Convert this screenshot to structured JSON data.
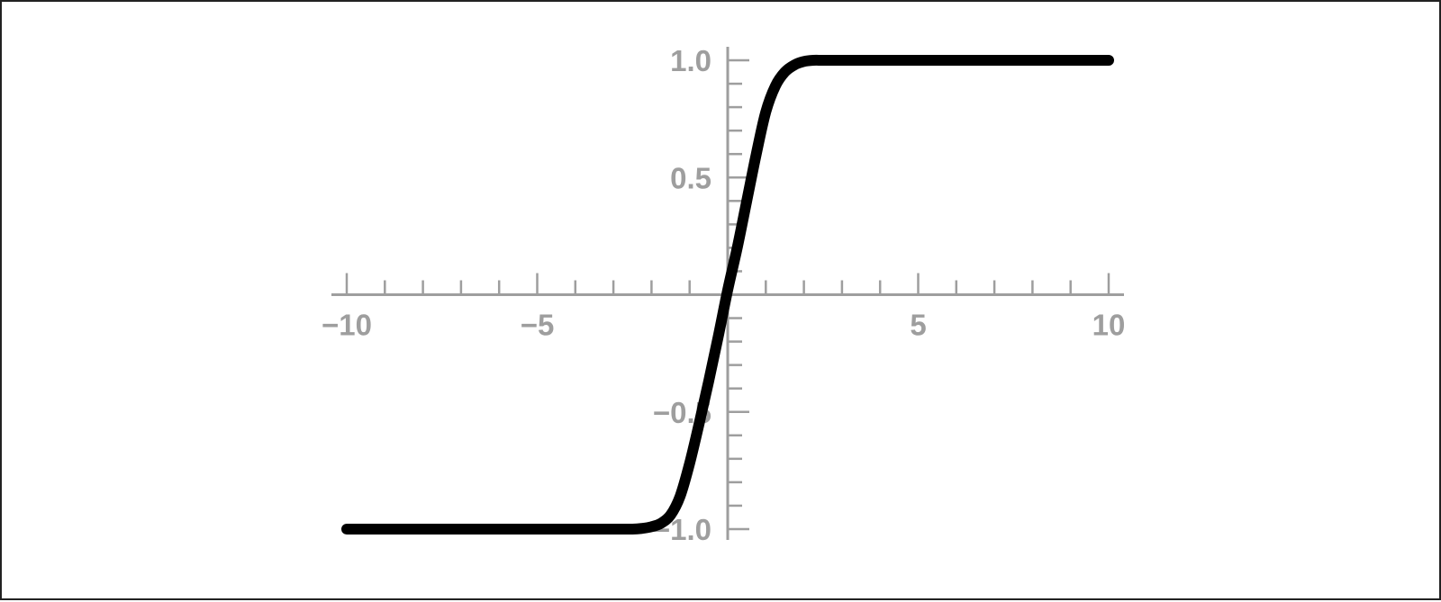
{
  "chart_data": {
    "type": "line",
    "title": "",
    "xlabel": "",
    "ylabel": "",
    "xlim": [
      -10,
      10
    ],
    "ylim": [
      -1,
      1
    ],
    "grid": false,
    "axis_color": "#9e9e9e",
    "line_color": "#000000",
    "x_tick_labels": [
      "−10",
      "−5",
      "5",
      "10"
    ],
    "x_tick_values": [
      -10,
      -5,
      5,
      10
    ],
    "y_tick_labels": [
      "−1.0",
      "−0.5",
      "0.5",
      "1.0"
    ],
    "y_tick_values": [
      -1,
      -0.5,
      0.5,
      1
    ],
    "series": [
      {
        "x": [
          -10,
          -9,
          -8,
          -7,
          -6,
          -5,
          -4,
          -3,
          -2.5,
          -2.25,
          -2,
          -1.75,
          -1.5,
          -1.25,
          -1,
          -0.75,
          -0.5,
          -0.25,
          0,
          0.25,
          0.5,
          0.75,
          1,
          1.25,
          1.5,
          1.75,
          2,
          2.25,
          2.5,
          3,
          4,
          5,
          6,
          7,
          8,
          9,
          10
        ],
        "y": [
          -1,
          -1,
          -1,
          -1,
          -1,
          -1,
          -1,
          -1,
          -1,
          -0.997,
          -0.99,
          -0.975,
          -0.94,
          -0.86,
          -0.72,
          -0.55,
          -0.37,
          -0.18,
          0.02,
          0.2,
          0.4,
          0.6,
          0.78,
          0.89,
          0.95,
          0.98,
          0.995,
          1,
          1,
          1,
          1,
          1,
          1,
          1,
          1,
          1,
          1
        ]
      }
    ]
  }
}
